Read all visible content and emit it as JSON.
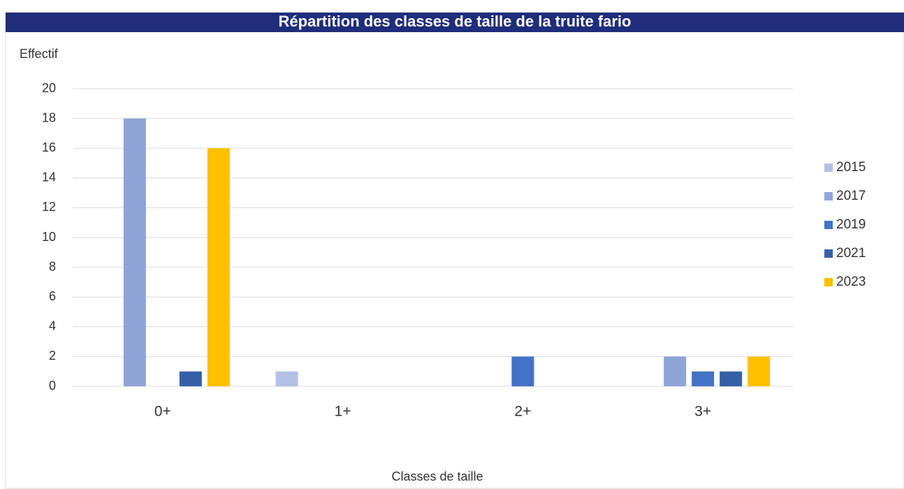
{
  "chart_data": {
    "type": "bar",
    "title": "Répartition des classes de taille de la truite fario",
    "y_label": "Effectif",
    "x_label": "Classes de taille",
    "categories": [
      "0+",
      "1+",
      "2+",
      "3+"
    ],
    "series": [
      {
        "name": "2015",
        "color": "#b4c0e4",
        "values": [
          0,
          1,
          0,
          0
        ]
      },
      {
        "name": "2017",
        "color": "#8fa4d6",
        "values": [
          18,
          0,
          0,
          2
        ]
      },
      {
        "name": "2019",
        "color": "#4472c4",
        "values": [
          0,
          0,
          2,
          1
        ]
      },
      {
        "name": "2021",
        "color": "#3560a8",
        "values": [
          1,
          0,
          0,
          1
        ]
      },
      {
        "name": "2023",
        "color": "#ffc000",
        "values": [
          16,
          0,
          0,
          2
        ]
      }
    ],
    "ylim": [
      0,
      20
    ],
    "yticks": [
      0,
      2,
      4,
      6,
      8,
      10,
      12,
      14,
      16,
      18,
      20
    ],
    "grid": true,
    "legend": "right"
  }
}
